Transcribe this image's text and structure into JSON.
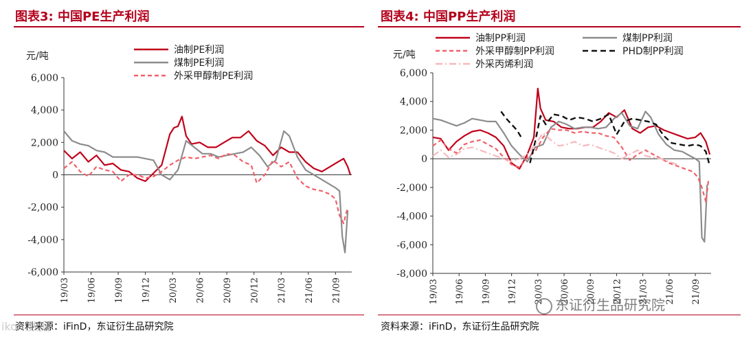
{
  "chart_data": [
    {
      "type": "line",
      "title": "图表3: 中国PE生产利润",
      "ylabel": "元/吨",
      "ylim": [
        -6000,
        6000
      ],
      "yticks": [
        6000,
        4000,
        2000,
        0,
        -2000,
        -4000,
        -6000
      ],
      "ytick_labels": [
        "6,000",
        "4,000",
        "2,000",
        "0",
        "-2,000",
        "-4,000",
        "-6,000"
      ],
      "xtick_labels": [
        "19/03",
        "19/06",
        "19/09",
        "19/12",
        "20/03",
        "20/06",
        "20/09",
        "20/12",
        "21/03",
        "21/06",
        "21/09"
      ],
      "x_range": [
        0,
        10.6
      ],
      "legend": "top-center",
      "source": "资料来源：iFinD，东证衍生品研究院",
      "series": [
        {
          "name": "油制PE利润",
          "color": "#c0001a",
          "dash": "solid",
          "width": 2.2,
          "x": [
            0,
            0.3,
            0.6,
            0.9,
            1.2,
            1.5,
            1.8,
            2.1,
            2.4,
            2.7,
            3.0,
            3.3,
            3.6,
            3.9,
            4.05,
            4.2,
            4.35,
            4.5,
            4.7,
            5.0,
            5.3,
            5.6,
            5.9,
            6.2,
            6.5,
            6.8,
            7.1,
            7.4,
            7.7,
            8.0,
            8.3,
            8.6,
            8.9,
            9.2,
            9.5,
            9.8,
            10.1,
            10.3,
            10.45,
            10.55
          ],
          "y": [
            1500,
            1000,
            1400,
            800,
            1200,
            600,
            700,
            300,
            200,
            -200,
            -400,
            100,
            600,
            2500,
            2900,
            3000,
            3600,
            2400,
            1900,
            2000,
            1700,
            1700,
            2000,
            2300,
            2300,
            2700,
            2100,
            1800,
            1200,
            1700,
            1400,
            1400,
            800,
            400,
            200,
            500,
            800,
            1000,
            500,
            0
          ]
        },
        {
          "name": "煤制PE利润",
          "color": "#8c8c8c",
          "dash": "solid",
          "width": 2.2,
          "x": [
            0,
            0.3,
            0.6,
            0.9,
            1.2,
            1.5,
            1.8,
            2.1,
            2.4,
            2.7,
            3.0,
            3.3,
            3.6,
            3.9,
            4.2,
            4.5,
            4.8,
            5.1,
            5.4,
            5.7,
            6.0,
            6.3,
            6.6,
            6.9,
            7.2,
            7.5,
            7.8,
            8.1,
            8.3,
            8.6,
            8.9,
            9.2,
            9.5,
            9.8,
            10.0,
            10.15,
            10.25,
            10.35,
            10.45
          ],
          "y": [
            2700,
            2100,
            1900,
            1800,
            1500,
            1400,
            1100,
            1100,
            1100,
            1100,
            1000,
            900,
            0,
            -300,
            300,
            2100,
            1700,
            1300,
            1300,
            1100,
            1200,
            1300,
            1400,
            1700,
            1200,
            500,
            900,
            2700,
            2400,
            1100,
            300,
            0,
            -300,
            -600,
            -800,
            -1000,
            -3800,
            -4800,
            -2200
          ]
        },
        {
          "name": "外采甲醇制PE利润",
          "color": "#f2606a",
          "dash": "6,4",
          "width": 2.2,
          "x": [
            0,
            0.3,
            0.6,
            0.9,
            1.2,
            1.5,
            1.8,
            2.1,
            2.4,
            2.7,
            3.0,
            3.3,
            3.6,
            3.9,
            4.2,
            4.5,
            4.8,
            5.1,
            5.4,
            5.7,
            6.0,
            6.3,
            6.6,
            6.9,
            7.1,
            7.4,
            7.7,
            8.0,
            8.3,
            8.6,
            8.9,
            9.2,
            9.5,
            9.8,
            10.0,
            10.15,
            10.3,
            10.45
          ],
          "y": [
            400,
            800,
            200,
            -100,
            500,
            300,
            200,
            -400,
            0,
            0,
            -200,
            -100,
            200,
            600,
            900,
            1100,
            1000,
            1100,
            1200,
            1000,
            1300,
            1200,
            800,
            600,
            -500,
            0,
            900,
            500,
            800,
            -200,
            -700,
            -900,
            -1000,
            -1200,
            -1500,
            -2500,
            -3000,
            -2000
          ]
        }
      ]
    },
    {
      "type": "line",
      "title": "图表4: 中国PP生产利润",
      "ylabel": "元/吨",
      "ylim": [
        -8000,
        6000
      ],
      "yticks": [
        6000,
        4000,
        2000,
        0,
        -2000,
        -4000,
        -6000,
        -8000
      ],
      "ytick_labels": [
        "6,000",
        "4,000",
        "2,000",
        "0",
        "-2,000",
        "-4,000",
        "-6,000",
        "-8,000"
      ],
      "xtick_labels": [
        "19/03",
        "19/06",
        "19/09",
        "19/12",
        "20/03",
        "20/06",
        "20/09",
        "20/12",
        "21/03",
        "21/06",
        "21/09"
      ],
      "x_range": [
        0,
        10.6
      ],
      "legend": "top",
      "source": "资料来源：iFinD，东证衍生品研究院",
      "series": [
        {
          "name": "油制PP利润",
          "color": "#c0001a",
          "dash": "solid",
          "width": 2.2,
          "x": [
            0,
            0.3,
            0.6,
            0.9,
            1.2,
            1.5,
            1.8,
            2.1,
            2.4,
            2.7,
            3.0,
            3.3,
            3.6,
            3.85,
            4.0,
            4.1,
            4.3,
            4.6,
            4.9,
            5.2,
            5.5,
            5.8,
            6.1,
            6.4,
            6.7,
            7.0,
            7.3,
            7.6,
            7.9,
            8.2,
            8.5,
            8.8,
            9.1,
            9.4,
            9.7,
            10.0,
            10.2,
            10.4,
            10.55
          ],
          "y": [
            1500,
            1400,
            600,
            1200,
            1600,
            1900,
            2000,
            1800,
            1500,
            900,
            -300,
            -700,
            300,
            1500,
            4900,
            3500,
            2700,
            2600,
            2200,
            2100,
            2100,
            2200,
            2200,
            2600,
            3200,
            2900,
            3400,
            2100,
            1800,
            2200,
            2300,
            2000,
            1800,
            1600,
            1400,
            1500,
            1800,
            1200,
            300
          ]
        },
        {
          "name": "煤制PP利润",
          "color": "#8c8c8c",
          "dash": "solid",
          "width": 2.2,
          "x": [
            0,
            0.3,
            0.6,
            0.9,
            1.2,
            1.5,
            1.8,
            2.1,
            2.4,
            2.7,
            3.0,
            3.3,
            3.6,
            3.9,
            4.2,
            4.5,
            4.8,
            5.1,
            5.4,
            5.7,
            6.0,
            6.3,
            6.6,
            6.9,
            7.2,
            7.5,
            7.8,
            8.1,
            8.3,
            8.6,
            8.9,
            9.2,
            9.5,
            9.8,
            10.0,
            10.15,
            10.25,
            10.35,
            10.45
          ],
          "y": [
            2800,
            2700,
            2500,
            2300,
            2500,
            2800,
            2700,
            2600,
            2600,
            1800,
            900,
            300,
            -200,
            800,
            1000,
            2200,
            2600,
            2400,
            2100,
            2200,
            2200,
            2100,
            2200,
            2800,
            3200,
            2300,
            2100,
            3300,
            2900,
            1700,
            1000,
            600,
            500,
            200,
            0,
            -200,
            -5500,
            -5800,
            -1800
          ]
        },
        {
          "name": "外采甲醇制PP利润",
          "color": "#f2606a",
          "dash": "6,4",
          "width": 2.2,
          "x": [
            0,
            0.3,
            0.6,
            0.9,
            1.2,
            1.5,
            1.8,
            2.1,
            2.4,
            2.7,
            3.0,
            3.3,
            3.6,
            3.9,
            4.2,
            4.5,
            4.8,
            5.1,
            5.4,
            5.7,
            6.0,
            6.3,
            6.6,
            6.9,
            7.2,
            7.5,
            7.8,
            8.1,
            8.4,
            8.7,
            9.0,
            9.3,
            9.6,
            9.9,
            10.1,
            10.25,
            10.4,
            10.5
          ],
          "y": [
            900,
            1300,
            700,
            400,
            1000,
            1200,
            1300,
            1000,
            700,
            100,
            -400,
            -600,
            100,
            500,
            1500,
            2100,
            2000,
            2000,
            1800,
            1900,
            1800,
            1800,
            1600,
            1500,
            800,
            -100,
            300,
            600,
            300,
            0,
            -300,
            -500,
            -700,
            -900,
            -1300,
            -2000,
            -3000,
            -1500
          ]
        },
        {
          "name": "PHD制PP利润",
          "color": "#111111",
          "dash": "8,5",
          "width": 2.4,
          "x": [
            3.7,
            3.9,
            4.1,
            4.3,
            4.6,
            4.9,
            5.2,
            5.5,
            5.8,
            6.1,
            6.4,
            6.7,
            7.0,
            7.3,
            7.6,
            7.9,
            8.2,
            8.5,
            8.8,
            9.1,
            9.4,
            9.7,
            10.0,
            10.2,
            10.4,
            10.55
          ],
          "y": [
            -300,
            1200,
            3000,
            2400,
            3100,
            3000,
            2700,
            2900,
            2800,
            2600,
            2800,
            3100,
            1700,
            2600,
            2800,
            2700,
            2600,
            2400,
            1600,
            1100,
            1000,
            900,
            1000,
            900,
            500,
            -500
          ],
          "x_pre": [
            2.6,
            2.8,
            3.0,
            3.2,
            3.4
          ],
          "y_pre": [
            3300,
            2800,
            2400,
            2000,
            1400
          ]
        },
        {
          "name": "外采丙烯利润",
          "color": "#f7b8bc",
          "dash": "10,4,2,4",
          "width": 2.2,
          "x": [
            0,
            0.3,
            0.6,
            0.9,
            1.2,
            1.5,
            1.8,
            2.1,
            2.4,
            2.7,
            3.0,
            3.3,
            3.6,
            3.9,
            4.2,
            4.5,
            4.8,
            5.1,
            5.4,
            5.7,
            6.0,
            6.3,
            6.6,
            6.9,
            7.2,
            7.5,
            7.8,
            8.1,
            8.4,
            8.7,
            9.0,
            9.3
          ],
          "y": [
            200,
            600,
            100,
            300,
            700,
            800,
            600,
            400,
            200,
            0,
            -200,
            0,
            300,
            1000,
            1800,
            1300,
            900,
            1000,
            1200,
            900,
            1000,
            800,
            600,
            400,
            0,
            300,
            600,
            200,
            100,
            0,
            -200,
            -400
          ]
        }
      ]
    }
  ],
  "watermark_text": "东证衍生品研究院",
  "corner_stamp": "ikon 数据"
}
